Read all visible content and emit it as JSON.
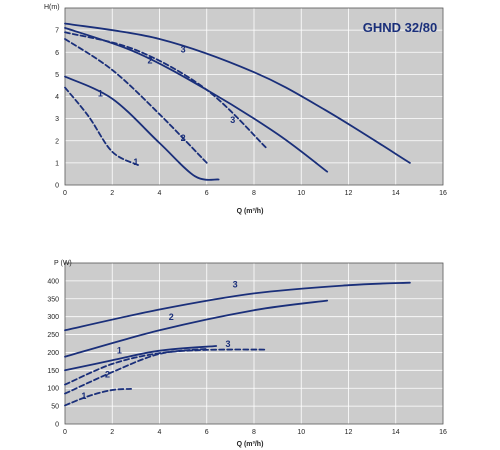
{
  "chart_data": [
    {
      "type": "line",
      "title": "GHND 32/80",
      "ylabel": "H(m)",
      "xlabel": "Q (m³/h)",
      "xlim": [
        0,
        16
      ],
      "ylim": [
        0,
        8
      ],
      "xticks": [
        "0",
        "2",
        "4",
        "6",
        "8",
        "10",
        "12",
        "14",
        "16"
      ],
      "yticks": [
        "0",
        "1",
        "2",
        "3",
        "4",
        "5",
        "6",
        "7"
      ],
      "grid": true,
      "series": [
        {
          "label": "3",
          "style": "solid",
          "points": [
            [
              0,
              7.3
            ],
            [
              4,
              6.6
            ],
            [
              8,
              5.1
            ],
            [
              11,
              3.4
            ],
            [
              14.6,
              1.0
            ]
          ],
          "label_at": [
            5.0,
            6.0
          ]
        },
        {
          "label": "2",
          "style": "solid",
          "points": [
            [
              0,
              7.1
            ],
            [
              3,
              6.0
            ],
            [
              6,
              4.3
            ],
            [
              9,
              2.3
            ],
            [
              11.1,
              0.6
            ]
          ],
          "label_at": [
            3.6,
            5.5
          ]
        },
        {
          "label": "1",
          "style": "solid",
          "points": [
            [
              0,
              4.9
            ],
            [
              2,
              3.9
            ],
            [
              4,
              1.9
            ],
            [
              5.5,
              0.4
            ],
            [
              6.5,
              0.25
            ]
          ],
          "label_at": [
            1.5,
            4.0
          ]
        },
        {
          "label": "3",
          "style": "dashed",
          "points": [
            [
              0,
              6.9
            ],
            [
              3,
              6.1
            ],
            [
              6,
              4.3
            ],
            [
              8.5,
              1.7
            ]
          ],
          "label_at": [
            7.1,
            2.8
          ]
        },
        {
          "label": "2",
          "style": "dashed",
          "points": [
            [
              0,
              6.6
            ],
            [
              2,
              5.2
            ],
            [
              4,
              3.2
            ],
            [
              6,
              1.0
            ]
          ],
          "label_at": [
            5.0,
            2.0
          ]
        },
        {
          "label": "1",
          "style": "dashed",
          "points": [
            [
              0,
              4.4
            ],
            [
              1,
              3.1
            ],
            [
              2,
              1.5
            ],
            [
              3.1,
              0.9
            ]
          ],
          "label_at": [
            3.0,
            0.9
          ]
        }
      ]
    },
    {
      "type": "line",
      "ylabel": "P (W)",
      "xlabel": "Q (m³/h)",
      "xlim": [
        0,
        16
      ],
      "ylim": [
        0,
        450
      ],
      "xticks": [
        "0",
        "2",
        "4",
        "6",
        "8",
        "10",
        "12",
        "14",
        "16"
      ],
      "yticks": [
        "0",
        "50",
        "100",
        "150",
        "200",
        "250",
        "300",
        "350",
        "400"
      ],
      "grid": true,
      "series": [
        {
          "label": "3",
          "style": "solid",
          "points": [
            [
              0,
              262
            ],
            [
              4,
              320
            ],
            [
              8,
              365
            ],
            [
              12,
              388
            ],
            [
              14.6,
              395
            ]
          ],
          "label_at": [
            7.2,
            382
          ]
        },
        {
          "label": "2",
          "style": "solid",
          "points": [
            [
              0,
              188
            ],
            [
              4,
              262
            ],
            [
              8,
              318
            ],
            [
              11.1,
              345
            ]
          ],
          "label_at": [
            4.5,
            290
          ]
        },
        {
          "label": "1",
          "style": "solid",
          "points": [
            [
              0,
              150
            ],
            [
              2,
              178
            ],
            [
              4,
              205
            ],
            [
              6.4,
              218
            ]
          ],
          "label_at": [
            2.3,
            197
          ]
        },
        {
          "label": "3",
          "style": "dashed",
          "points": [
            [
              0,
              110
            ],
            [
              2,
              168
            ],
            [
              4,
              198
            ],
            [
              6,
              207
            ],
            [
              8.5,
              208
            ]
          ],
          "label_at": [
            6.9,
            215
          ]
        },
        {
          "label": "2",
          "style": "dashed",
          "points": [
            [
              0,
              85
            ],
            [
              2,
              145
            ],
            [
              4,
              196
            ],
            [
              6,
              210
            ]
          ],
          "label_at": [
            1.8,
            130
          ]
        },
        {
          "label": "1",
          "style": "dashed",
          "points": [
            [
              0,
              52
            ],
            [
              1,
              78
            ],
            [
              2,
              95
            ],
            [
              2.8,
              98
            ]
          ],
          "label_at": [
            0.8,
            70
          ]
        }
      ]
    }
  ]
}
